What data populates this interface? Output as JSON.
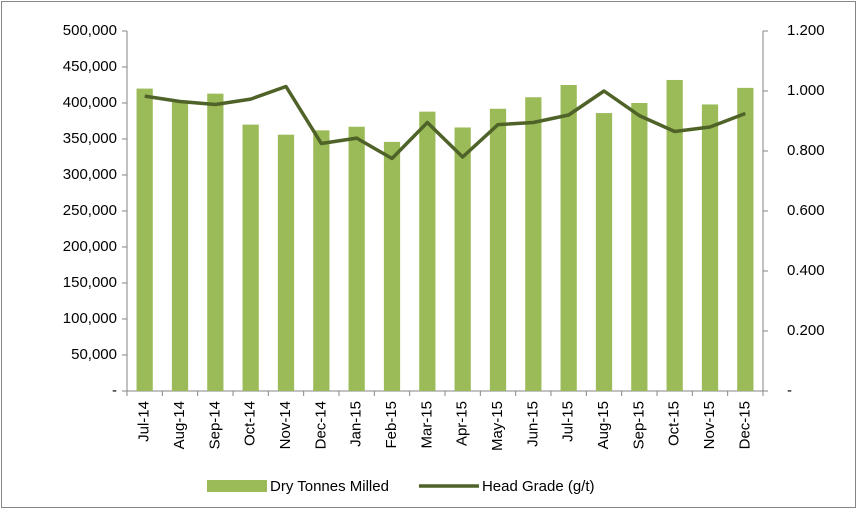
{
  "chart_data": {
    "type": "bar_line",
    "categories": [
      "Jul-14",
      "Aug-14",
      "Sep-14",
      "Oct-14",
      "Nov-14",
      "Dec-14",
      "Jan-15",
      "Feb-15",
      "Mar-15",
      "Apr-15",
      "May-15",
      "Jun-15",
      "Jul-15",
      "Aug-15",
      "Sep-15",
      "Oct-15",
      "Nov-15",
      "Dec-15"
    ],
    "series": [
      {
        "name": "Dry Tonnes Milled",
        "type": "bar",
        "color": "#9bbb59",
        "values": [
          420000,
          403000,
          413000,
          370000,
          356000,
          362000,
          367000,
          346000,
          388000,
          366000,
          392000,
          408000,
          425000,
          386000,
          400000,
          432000,
          398000,
          421000
        ]
      },
      {
        "name": "Head Grade (g/t)",
        "type": "line",
        "axis": "y2",
        "color": "#4f6228",
        "values": [
          0.983,
          0.965,
          0.955,
          0.973,
          1.015,
          0.825,
          0.843,
          0.775,
          0.895,
          0.78,
          0.888,
          0.895,
          0.92,
          1.0,
          0.918,
          0.865,
          0.88,
          0.925
        ]
      }
    ],
    "ylim": [
      0,
      500000
    ],
    "yticks": [
      {
        "value": 0,
        "label": "-"
      },
      {
        "value": 50000,
        "label": "50,000"
      },
      {
        "value": 100000,
        "label": "100,000"
      },
      {
        "value": 150000,
        "label": "150,000"
      },
      {
        "value": 200000,
        "label": "200,000"
      },
      {
        "value": 250000,
        "label": "250,000"
      },
      {
        "value": 300000,
        "label": "300,000"
      },
      {
        "value": 350000,
        "label": "350,000"
      },
      {
        "value": 400000,
        "label": "400,000"
      },
      {
        "value": 450000,
        "label": "450,000"
      },
      {
        "value": 500000,
        "label": "500,000"
      }
    ],
    "y2lim": [
      0,
      1.2
    ],
    "y2ticks": [
      {
        "value": 0,
        "label": "-"
      },
      {
        "value": 0.2,
        "label": "0.200"
      },
      {
        "value": 0.4,
        "label": "0.400"
      },
      {
        "value": 0.6,
        "label": "0.600"
      },
      {
        "value": 0.8,
        "label": "0.800"
      },
      {
        "value": 1.0,
        "label": "1.000"
      },
      {
        "value": 1.2,
        "label": "1.200"
      }
    ],
    "legend": "bottom"
  }
}
